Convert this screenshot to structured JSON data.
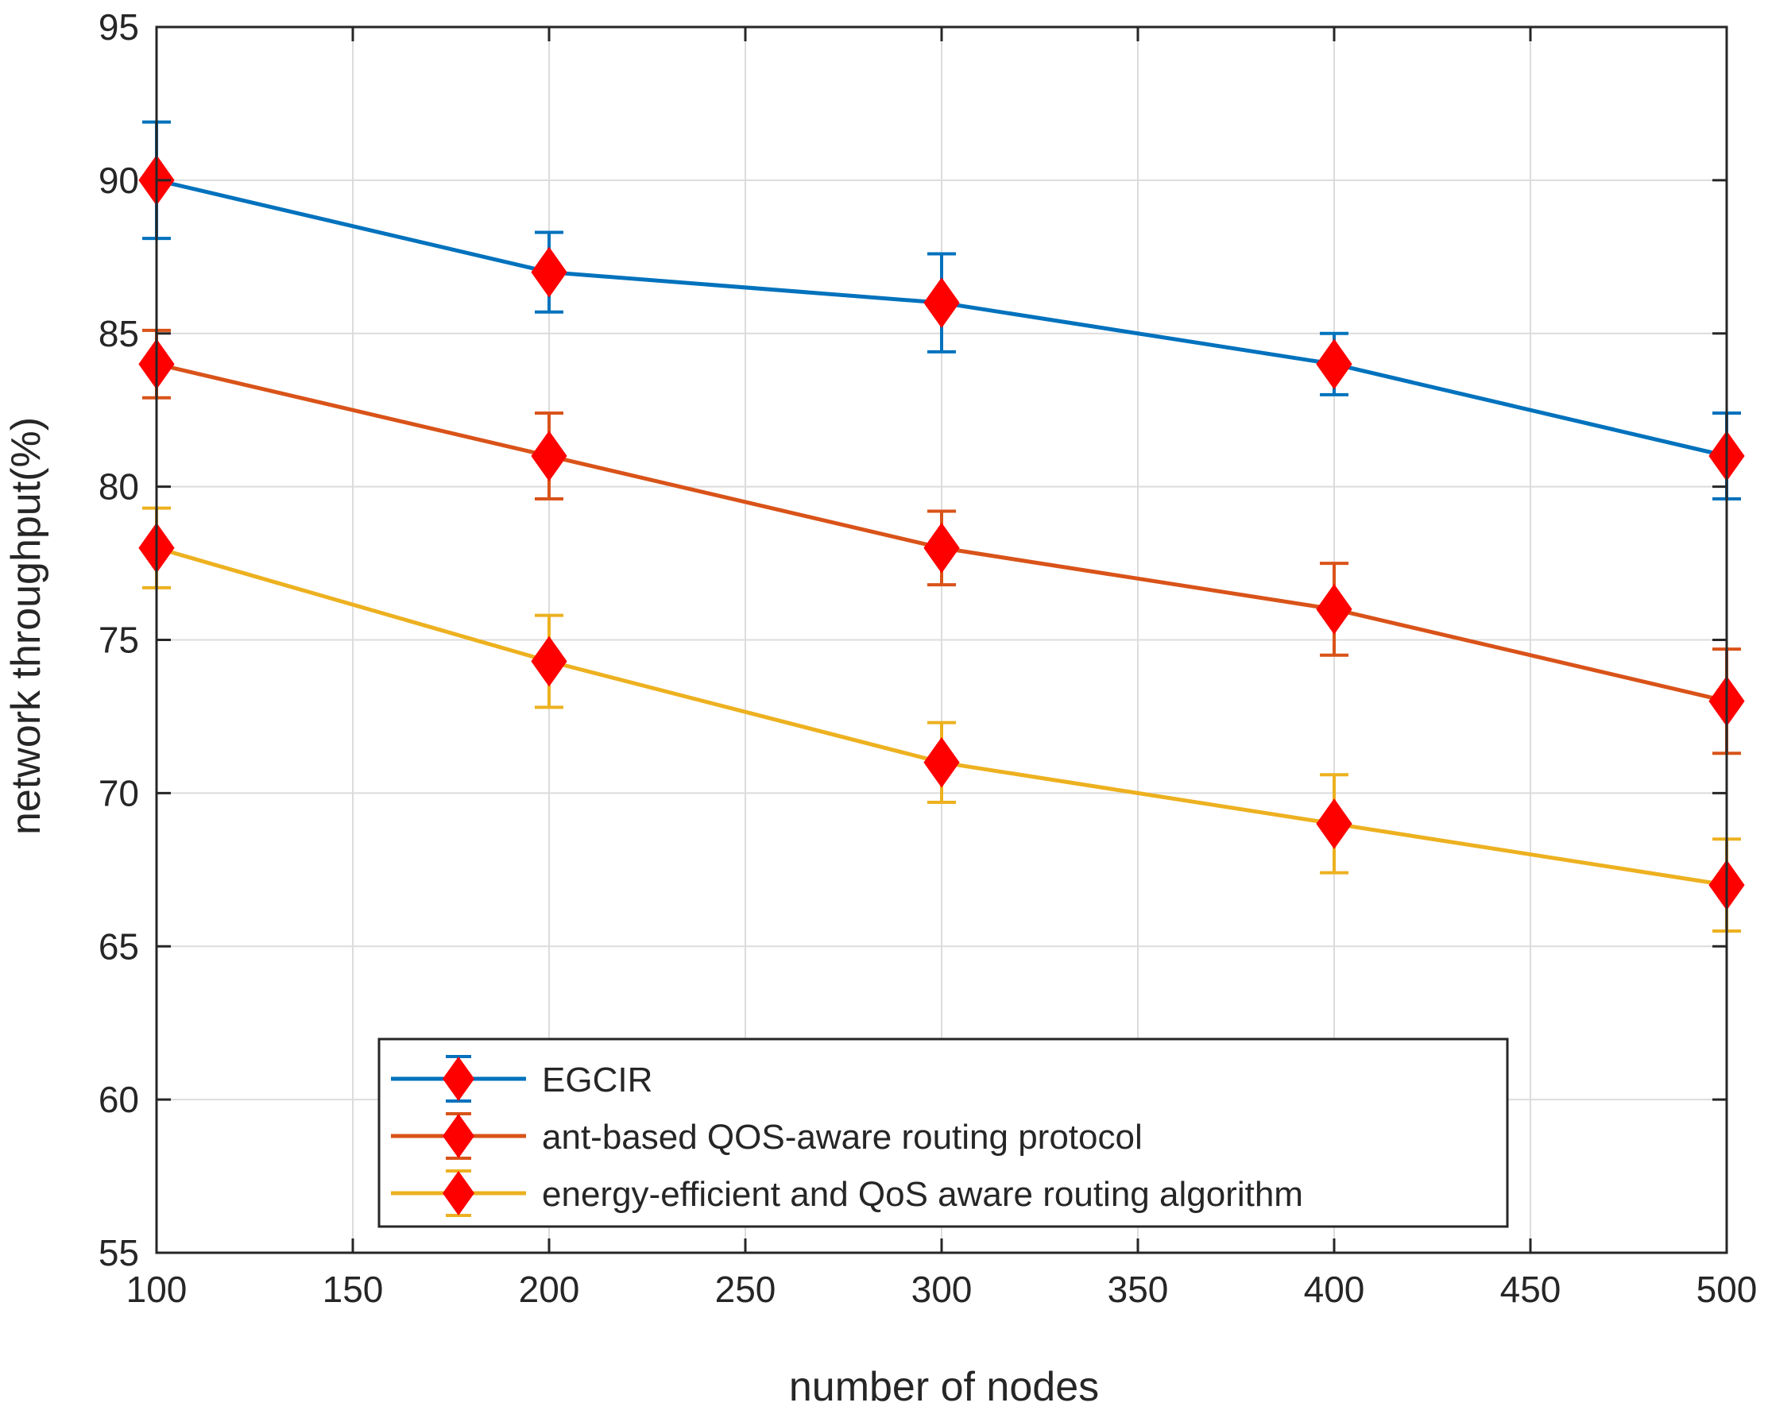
{
  "chart_data": {
    "type": "line",
    "title": "",
    "xlabel": "number of nodes",
    "ylabel": "network throughput(%)",
    "xlim": [
      100,
      500
    ],
    "ylim": [
      55,
      95
    ],
    "xticks": [
      100,
      150,
      200,
      250,
      300,
      350,
      400,
      450,
      500
    ],
    "yticks": [
      55,
      60,
      65,
      70,
      75,
      80,
      85,
      90,
      95
    ],
    "grid": true,
    "legend_position": "bottom-center",
    "x": [
      100,
      200,
      300,
      400,
      500
    ],
    "series": [
      {
        "name": "EGCIR",
        "color": "#0072BD",
        "marker": "diamond",
        "marker_color": "#FF0000",
        "values": [
          90,
          87,
          86,
          84,
          81
        ],
        "error": [
          1.9,
          1.3,
          1.6,
          1.0,
          1.4
        ]
      },
      {
        "name": "ant-based QOS-aware routing protocol",
        "color": "#D95319",
        "marker": "diamond",
        "marker_color": "#FF0000",
        "values": [
          84,
          81,
          78,
          76,
          73
        ],
        "error": [
          1.1,
          1.4,
          1.2,
          1.5,
          1.7
        ]
      },
      {
        "name": "energy-efficient and QoS aware routing algorithm",
        "color": "#EDB120",
        "marker": "diamond",
        "marker_color": "#FF0000",
        "values": [
          78,
          74.3,
          71,
          69,
          67
        ],
        "error": [
          1.3,
          1.5,
          1.3,
          1.6,
          1.5
        ]
      }
    ]
  }
}
